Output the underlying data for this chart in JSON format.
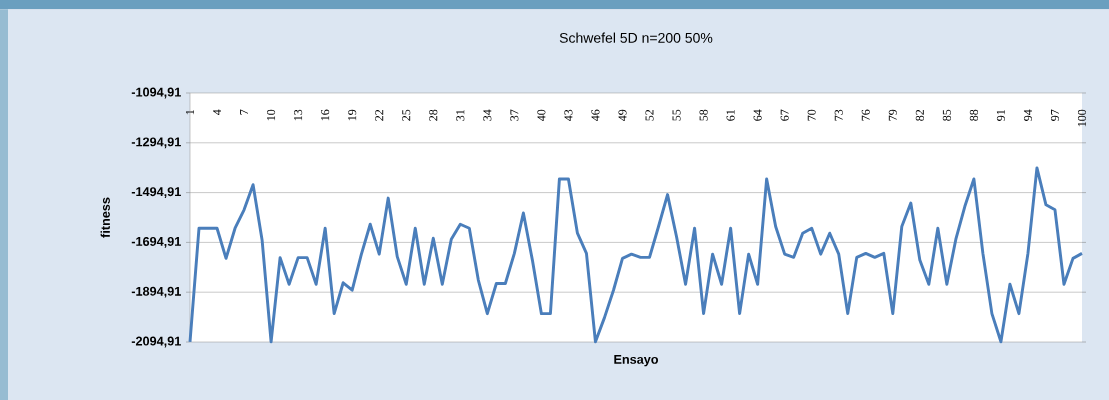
{
  "chart_data": {
    "type": "line",
    "title": "Schwefel 5D n=200 50%",
    "xlabel": "Ensayo",
    "ylabel": "fitness",
    "categories": [
      "1",
      null,
      null,
      "4",
      null,
      null,
      "7",
      null,
      null,
      "10",
      null,
      null,
      "13",
      null,
      null,
      "16",
      null,
      null,
      "19",
      null,
      null,
      "22",
      null,
      null,
      "25",
      null,
      null,
      "28",
      null,
      null,
      "31",
      null,
      null,
      "34",
      null,
      null,
      "37",
      null,
      null,
      "40",
      null,
      null,
      "43",
      null,
      null,
      "46",
      null,
      null,
      "49",
      null,
      null,
      "52",
      null,
      null,
      "55",
      null,
      null,
      "58",
      null,
      null,
      "61",
      null,
      null,
      "64",
      null,
      null,
      "67",
      null,
      null,
      "70",
      null,
      null,
      "73",
      null,
      null,
      "76",
      null,
      null,
      "79",
      null,
      null,
      "82",
      null,
      null,
      "85",
      null,
      null,
      "88",
      null,
      null,
      "91",
      null,
      null,
      "94",
      null,
      null,
      "97",
      null,
      null,
      "100"
    ],
    "values": [
      -2094,
      -1638,
      -1638,
      -1638,
      -1759,
      -1638,
      -1564,
      -1463,
      -1685,
      -2094,
      -1756,
      -1863,
      -1756,
      -1756,
      -1863,
      -1638,
      -1981,
      -1857,
      -1887,
      -1745,
      -1622,
      -1742,
      -1517,
      -1752,
      -1863,
      -1638,
      -1863,
      -1678,
      -1863,
      -1682,
      -1622,
      -1638,
      -1846,
      -1981,
      -1860,
      -1860,
      -1739,
      -1577,
      -1766,
      -1981,
      -1981,
      -1440,
      -1440,
      -1658,
      -1739,
      -2094,
      -1997,
      -1887,
      -1759,
      -1742,
      -1755,
      -1755,
      -1631,
      -1503,
      -1672,
      -1863,
      -1638,
      -1981,
      -1742,
      -1863,
      -1638,
      -1981,
      -1742,
      -1863,
      -1440,
      -1631,
      -1742,
      -1755,
      -1658,
      -1638,
      -1742,
      -1658,
      -1742,
      -1981,
      -1755,
      -1739,
      -1755,
      -1739,
      -1981,
      -1631,
      -1537,
      -1766,
      -1863,
      -1638,
      -1863,
      -1682,
      -1550,
      -1440,
      -1739,
      -1981,
      -2094,
      -1863,
      -1981,
      -1739,
      -1396,
      -1544,
      -1564,
      -1863,
      -1759,
      -1739
    ],
    "color": "#4a7ebb",
    "ylim": [
      -2094.91,
      -1094.91
    ],
    "yticks": [
      {
        "value": -2094.91,
        "label": "-2094,91"
      },
      {
        "value": -1894.91,
        "label": "-1894,91"
      },
      {
        "value": -1694.91,
        "label": "-1694,91"
      },
      {
        "value": -1494.91,
        "label": "-1494,91"
      },
      {
        "value": -1294.91,
        "label": "-1294,91"
      },
      {
        "value": -1094.91,
        "label": "-1094,91"
      }
    ],
    "grid": "y"
  }
}
